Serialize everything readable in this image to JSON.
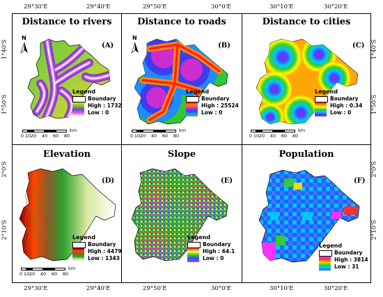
{
  "coords": {
    "top": [
      "29°30'E",
      "29°40'E",
      "29°50'E",
      "30°0'E",
      "30°10'E",
      "30°20'E"
    ],
    "bottom": [
      "29°30'E",
      "29°40'E",
      "29°50'E",
      "30°0'E",
      "30°10'E",
      "30°20'E"
    ],
    "left": [
      "1°40'S",
      "1°50'S",
      "2°0'S",
      "2°10'S"
    ],
    "right": [
      "1°40'S",
      "1°50'S",
      "2°0'S",
      "2°10'S"
    ]
  },
  "panels": [
    {
      "title": "Distance to rivers",
      "label": "(A)",
      "legend_title": "Legend",
      "boundary": "Boundary",
      "high": "High : 17321",
      "low": "Low : 0"
    },
    {
      "title": "Distance to roads",
      "label": "(B)",
      "legend_title": "Legend",
      "boundary": "Boundary",
      "high": "High : 25524",
      "low": "Low : 0"
    },
    {
      "title": "Distance to cities",
      "label": "(C)",
      "legend_title": "Legend",
      "boundary": "Boundary",
      "high": "High : 0.34",
      "low": "Low : 0"
    },
    {
      "title": "Elevation",
      "label": "(D)",
      "legend_title": "Legend",
      "boundary": "Boundary",
      "high": "High : 4479",
      "low": "Low : 1343"
    },
    {
      "title": "Slope",
      "label": "(E)",
      "legend_title": "Legend",
      "boundary": "Boundary",
      "high": "High : 64.1",
      "low": "Low : 0"
    },
    {
      "title": "Population",
      "label": "(F)",
      "legend_title": "Legend",
      "boundary": "Boundary",
      "high": "High : 3814",
      "low": "Low : 31"
    }
  ],
  "scalebar": {
    "ticks": [
      "0",
      "10",
      "20",
      "40",
      "60",
      "80"
    ],
    "unit": "km"
  },
  "north_label": "N",
  "colors": {
    "rivers_ramp": [
      "#ffffff",
      "#cc66ff",
      "#8c3cc8",
      "#66cc33",
      "#f0d820"
    ],
    "roads_ramp": [
      "#ff2020",
      "#ff8c00",
      "#cc2cd0",
      "#3c3cf0",
      "#1e8cff",
      "#32c832"
    ],
    "cities_ramp": [
      "#ff2020",
      "#ffa000",
      "#ffff00",
      "#32cd32",
      "#00c8ff",
      "#4646ff",
      "#a020f0"
    ],
    "elevation_ramp": [
      "#ffffff",
      "#d8e8a0",
      "#2ca02c",
      "#8b5a2b",
      "#ff4500",
      "#8b0000"
    ],
    "slope_ramp": [
      "#ff3030",
      "#ffff40",
      "#30c030",
      "#3050ff",
      "#b040ff"
    ],
    "population_ramp": [
      "#1e64ff",
      "#00c8ff",
      "#32cd32",
      "#ffd700",
      "#ff3030",
      "#ff30ff"
    ]
  }
}
